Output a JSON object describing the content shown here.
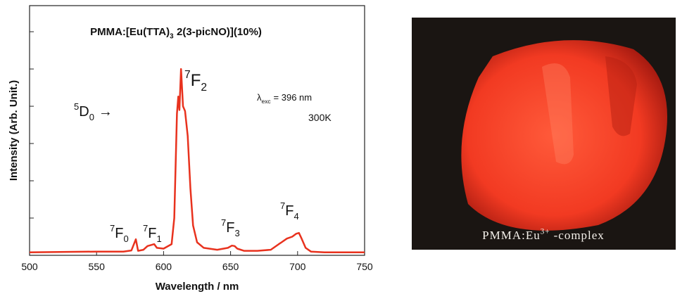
{
  "chart_data": {
    "type": "line",
    "title": {
      "main": "PMMA:[Eu(TTA)",
      "sub": "3",
      "rest": "2(3-picNO)](10%)"
    },
    "x_label": "Wavelength / nm",
    "y_label": "Intensity (Arb. Unit.)",
    "xlim": [
      500,
      750
    ],
    "xticks": [
      500,
      550,
      600,
      650,
      700,
      750
    ],
    "ylim": [
      0,
      6.7
    ],
    "yticks": [
      0,
      1,
      2,
      3,
      4,
      5,
      6
    ],
    "series": [
      {
        "color": "#e8321e",
        "x": [
          500,
          550,
          570,
          576,
          579.3,
          581,
          585,
          588,
          591,
          593,
          595,
          600,
          606,
          608,
          610,
          611,
          611.8,
          613,
          614.5,
          616,
          618,
          620,
          622,
          625,
          630,
          640,
          648,
          651,
          653,
          655,
          660,
          670,
          680,
          686,
          688,
          692,
          696,
          699,
          701,
          703,
          706,
          710,
          720,
          750
        ],
        "values": [
          0.08,
          0.1,
          0.1,
          0.13,
          0.43,
          0.12,
          0.15,
          0.25,
          0.28,
          0.3,
          0.2,
          0.18,
          0.3,
          1.0,
          3.8,
          4.26,
          3.9,
          5.0,
          4.0,
          3.87,
          3.2,
          1.8,
          0.8,
          0.35,
          0.2,
          0.15,
          0.2,
          0.26,
          0.25,
          0.18,
          0.12,
          0.12,
          0.15,
          0.3,
          0.35,
          0.45,
          0.5,
          0.58,
          0.6,
          0.45,
          0.2,
          0.1,
          0.08,
          0.08
        ]
      }
    ],
    "annotations": [
      {
        "sup": "5",
        "main": "D",
        "sub": "0",
        "rest": "→"
      },
      {
        "sup": "7",
        "main": "F",
        "sub": "0"
      },
      {
        "sup": "7",
        "main": "F",
        "sub": "1"
      },
      {
        "sup": "7",
        "main": "F",
        "sub": "2"
      },
      {
        "sup": "7",
        "main": "F",
        "sub": "3"
      },
      {
        "sup": "7",
        "main": "F",
        "sub": "4"
      },
      {
        "main": "λ",
        "sub": "exc",
        "rest": "= 396 nm"
      },
      {
        "main": "300K"
      }
    ],
    "photo_caption": {
      "main": "PMMA:Eu",
      "sup": "3+",
      "rest": "-complex"
    }
  }
}
